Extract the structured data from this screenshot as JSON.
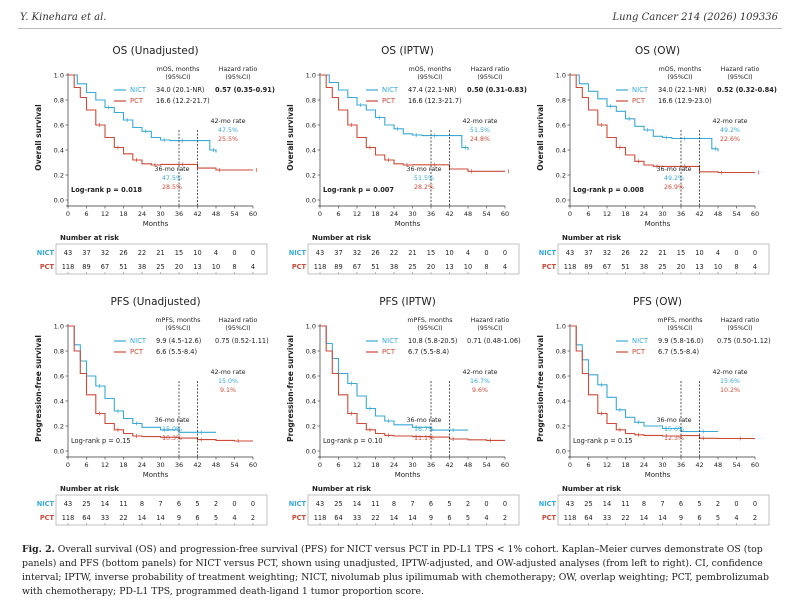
{
  "header": {
    "left": "Y. Kinehara et al.",
    "right": "Lung Cancer 214 (2026) 109336"
  },
  "colors": {
    "nict": "#3aa9d6",
    "pct": "#cc4b3a",
    "table_border": "#999999"
  },
  "common": {
    "x_ticks": [
      "0",
      "6",
      "12",
      "18",
      "24",
      "30",
      "36",
      "42",
      "48",
      "54",
      "60"
    ],
    "xlabel": "Months",
    "y_ticks": [
      "0.0",
      "0.2",
      "0.4",
      "0.6",
      "0.8",
      "1.0"
    ],
    "risk_title": "Number at risk",
    "nict_label": "NICT",
    "pct_label": "PCT",
    "rate36_label": "36-mo rate",
    "rate42_label": "42-mo rate"
  },
  "panels": [
    {
      "title": "OS (Unadjusted)",
      "ylabel": "Overall survival",
      "stat_head": "mOS, months\n(95%CI)",
      "hr_head": "Hazard ratio\n(95%CI)",
      "nict_median": "34.0 (20.1-NR)",
      "pct_median": "16.6 (12.2-21.7)",
      "hr": "0.57 (0.35-0.91)",
      "hr_bold": true,
      "rate42": [
        "47.5%",
        "25.5%"
      ],
      "rate36": [
        "47.5%",
        "28.5%"
      ],
      "logrank": "Log-rank p = 0.018",
      "logrank_bold": true,
      "risk_nict": [
        "43",
        "37",
        "32",
        "26",
        "22",
        "21",
        "15",
        "10",
        "4",
        "0",
        "0"
      ],
      "risk_pct": [
        "118",
        "89",
        "67",
        "51",
        "38",
        "25",
        "20",
        "13",
        "10",
        "8",
        "4"
      ]
    },
    {
      "title": "OS (IPTW)",
      "ylabel": "Overall survival",
      "stat_head": "mOS, months\n(95%CI)",
      "hr_head": "Hazard ratio\n(95%CI)",
      "nict_median": "47.4 (22.1-NR)",
      "pct_median": "16.6 (12.3-21.7)",
      "hr": "0.50 (0.31-0.83)",
      "hr_bold": true,
      "rate42": [
        "51.5%",
        "24.8%"
      ],
      "rate36": [
        "51.5%",
        "28.2%"
      ],
      "logrank": "Log-rank p = 0.007",
      "logrank_bold": true,
      "risk_nict": [
        "43",
        "37",
        "32",
        "26",
        "22",
        "21",
        "15",
        "10",
        "4",
        "0",
        "0"
      ],
      "risk_pct": [
        "118",
        "89",
        "67",
        "51",
        "38",
        "25",
        "20",
        "13",
        "10",
        "8",
        "4"
      ]
    },
    {
      "title": "OS (OW)",
      "ylabel": "Overall survival",
      "stat_head": "mOS, months\n(95%CI)",
      "hr_head": "Hazard ratio\n(95%CI)",
      "nict_median": "34.0 (22.1-NR)",
      "pct_median": "16.6 (12.9-23.0)",
      "hr": "0.52 (0.32-0.84)",
      "hr_bold": true,
      "rate42": [
        "49.2%",
        "22.6%"
      ],
      "rate36": [
        "49.2%",
        "26.9%"
      ],
      "logrank": "Log-rank p = 0.008",
      "logrank_bold": true,
      "risk_nict": [
        "43",
        "37",
        "32",
        "26",
        "22",
        "21",
        "15",
        "10",
        "4",
        "0",
        "0"
      ],
      "risk_pct": [
        "118",
        "89",
        "67",
        "51",
        "38",
        "25",
        "20",
        "13",
        "10",
        "8",
        "4"
      ]
    },
    {
      "title": "PFS (Unadjusted)",
      "ylabel": "Progression-free survival",
      "stat_head": "mPFS, months\n(95%CI)",
      "hr_head": "Hazard ratio\n(95%CI)",
      "nict_median": "9.9 (4.5-12.6)",
      "pct_median": "6.6 (5.5-8.4)",
      "hr": "0.75 (0.52-1.11)",
      "hr_bold": false,
      "rate42": [
        "15.0%",
        "9.1%"
      ],
      "rate36": [
        "15.0%",
        "10.3%"
      ],
      "logrank": "Log-rank p = 0.15",
      "logrank_bold": false,
      "risk_nict": [
        "43",
        "25",
        "14",
        "11",
        "8",
        "7",
        "6",
        "5",
        "2",
        "0",
        "0"
      ],
      "risk_pct": [
        "118",
        "64",
        "33",
        "22",
        "14",
        "14",
        "9",
        "6",
        "5",
        "4",
        "2"
      ]
    },
    {
      "title": "PFS (IPTW)",
      "ylabel": "Progression-free survival",
      "stat_head": "mPFS, months\n(95%CI)",
      "hr_head": "Hazard ratio\n(95%CI)",
      "nict_median": "10.8 (5.8-20.5)",
      "pct_median": "6.7 (5.5-8.4)",
      "hr": "0.71 (0.48-1.06)",
      "hr_bold": false,
      "rate42": [
        "16.7%",
        "9.6%"
      ],
      "rate36": [
        "16.7%",
        "11.1%"
      ],
      "logrank": "Log-rank p = 0.10",
      "logrank_bold": false,
      "risk_nict": [
        "43",
        "25",
        "14",
        "11",
        "8",
        "7",
        "6",
        "5",
        "2",
        "0",
        "0"
      ],
      "risk_pct": [
        "118",
        "64",
        "33",
        "22",
        "14",
        "14",
        "9",
        "6",
        "5",
        "4",
        "2"
      ]
    },
    {
      "title": "PFS (OW)",
      "ylabel": "Progression-free survival",
      "stat_head": "mPFS, months\n(95%CI)",
      "hr_head": "Hazard ratio\n(95%CI)",
      "nict_median": "9.9 (5.8-16.0)",
      "pct_median": "6.7 (5.5-8.4)",
      "hr": "0.75 (0.50-1.12)",
      "hr_bold": false,
      "rate42": [
        "15.6%",
        "10.2%"
      ],
      "rate36": [
        "15.6%",
        "12.3%"
      ],
      "logrank": "Log-rank p = 0.15",
      "logrank_bold": false,
      "risk_nict": [
        "43",
        "25",
        "14",
        "11",
        "8",
        "7",
        "6",
        "5",
        "2",
        "0",
        "0"
      ],
      "risk_pct": [
        "118",
        "64",
        "33",
        "22",
        "14",
        "14",
        "9",
        "6",
        "5",
        "4",
        "2"
      ]
    }
  ],
  "caption": {
    "label": "Fig. 2.",
    "text": "Overall survival (OS) and progression-free survival (PFS) for NICT versus PCT in PD-L1 TPS < 1% cohort. Kaplan–Meier curves demonstrate OS (top panels) and PFS (bottom panels) for NICT versus PCT, shown using unadjusted, IPTW-adjusted, and OW-adjusted analyses (from left to right). CI, confidence interval; IPTW, inverse probability of treatment weighting; NICT, nivolumab plus ipilimumab with chemotherapy; OW, overlap weighting; PCT, pembrolizumab with chemotherapy; PD-L1 TPS, programmed death-ligand 1 tumor proportion score."
  },
  "chart_data": [
    {
      "type": "line",
      "title": "OS (Unadjusted)",
      "xlabel": "Months",
      "ylabel": "Overall survival",
      "xlim": [
        0,
        60
      ],
      "ylim": [
        0,
        1
      ],
      "series": [
        {
          "name": "NICT",
          "x": [
            0,
            3,
            6,
            9,
            12,
            15,
            18,
            21,
            24,
            27,
            30,
            33,
            36,
            42,
            46,
            48
          ],
          "y": [
            1,
            0.93,
            0.86,
            0.8,
            0.74,
            0.7,
            0.64,
            0.58,
            0.55,
            0.5,
            0.48,
            0.475,
            0.475,
            0.475,
            0.4,
            0.38
          ]
        },
        {
          "name": "PCT",
          "x": [
            0,
            2,
            4,
            6,
            9,
            12,
            15,
            18,
            21,
            24,
            27,
            30,
            36,
            42,
            48,
            54,
            60
          ],
          "y": [
            1,
            0.9,
            0.82,
            0.72,
            0.6,
            0.5,
            0.42,
            0.37,
            0.32,
            0.29,
            0.28,
            0.285,
            0.285,
            0.255,
            0.24,
            0.24,
            0.24
          ]
        }
      ]
    },
    {
      "type": "line",
      "title": "OS (IPTW)",
      "xlabel": "Months",
      "ylabel": "Overall survival",
      "xlim": [
        0,
        60
      ],
      "ylim": [
        0,
        1
      ],
      "series": [
        {
          "name": "NICT",
          "x": [
            0,
            3,
            6,
            9,
            12,
            15,
            18,
            21,
            24,
            27,
            30,
            33,
            36,
            42,
            46,
            48
          ],
          "y": [
            1,
            0.94,
            0.88,
            0.82,
            0.76,
            0.72,
            0.66,
            0.6,
            0.57,
            0.53,
            0.52,
            0.515,
            0.515,
            0.515,
            0.42,
            0.4
          ]
        },
        {
          "name": "PCT",
          "x": [
            0,
            2,
            4,
            6,
            9,
            12,
            15,
            18,
            21,
            24,
            27,
            30,
            36,
            42,
            48,
            54,
            60
          ],
          "y": [
            1,
            0.9,
            0.82,
            0.72,
            0.6,
            0.5,
            0.42,
            0.36,
            0.32,
            0.29,
            0.28,
            0.282,
            0.282,
            0.248,
            0.23,
            0.23,
            0.23
          ]
        }
      ]
    },
    {
      "type": "line",
      "title": "OS (OW)",
      "xlabel": "Months",
      "ylabel": "Overall survival",
      "xlim": [
        0,
        60
      ],
      "ylim": [
        0,
        1
      ],
      "series": [
        {
          "name": "NICT",
          "x": [
            0,
            3,
            6,
            9,
            12,
            15,
            18,
            21,
            24,
            27,
            30,
            33,
            36,
            42,
            46,
            48
          ],
          "y": [
            1,
            0.93,
            0.87,
            0.81,
            0.75,
            0.71,
            0.65,
            0.59,
            0.56,
            0.51,
            0.5,
            0.492,
            0.492,
            0.492,
            0.41,
            0.39
          ]
        },
        {
          "name": "PCT",
          "x": [
            0,
            2,
            4,
            6,
            9,
            12,
            15,
            18,
            21,
            24,
            27,
            30,
            36,
            42,
            48,
            54,
            60
          ],
          "y": [
            1,
            0.9,
            0.82,
            0.72,
            0.6,
            0.5,
            0.42,
            0.36,
            0.31,
            0.28,
            0.27,
            0.269,
            0.269,
            0.226,
            0.22,
            0.22,
            0.22
          ]
        }
      ]
    },
    {
      "type": "line",
      "title": "PFS (Unadjusted)",
      "xlabel": "Months",
      "ylabel": "Progression-free survival",
      "xlim": [
        0,
        60
      ],
      "ylim": [
        0,
        1
      ],
      "series": [
        {
          "name": "NICT",
          "x": [
            0,
            2,
            4,
            6,
            9,
            12,
            15,
            18,
            21,
            24,
            30,
            36,
            42,
            48
          ],
          "y": [
            1,
            0.85,
            0.72,
            0.6,
            0.52,
            0.42,
            0.32,
            0.26,
            0.22,
            0.19,
            0.17,
            0.15,
            0.15,
            0.15
          ]
        },
        {
          "name": "PCT",
          "x": [
            0,
            2,
            4,
            6,
            9,
            12,
            15,
            18,
            21,
            24,
            30,
            36,
            42,
            48,
            54,
            60
          ],
          "y": [
            1,
            0.8,
            0.62,
            0.45,
            0.3,
            0.22,
            0.17,
            0.14,
            0.12,
            0.115,
            0.11,
            0.103,
            0.091,
            0.085,
            0.08,
            0.08
          ]
        }
      ]
    },
    {
      "type": "line",
      "title": "PFS (IPTW)",
      "xlabel": "Months",
      "ylabel": "Progression-free survival",
      "xlim": [
        0,
        60
      ],
      "ylim": [
        0,
        1
      ],
      "series": [
        {
          "name": "NICT",
          "x": [
            0,
            2,
            4,
            6,
            9,
            12,
            15,
            18,
            21,
            24,
            30,
            36,
            42,
            48
          ],
          "y": [
            1,
            0.86,
            0.74,
            0.62,
            0.54,
            0.44,
            0.34,
            0.28,
            0.24,
            0.21,
            0.19,
            0.167,
            0.167,
            0.167
          ]
        },
        {
          "name": "PCT",
          "x": [
            0,
            2,
            4,
            6,
            9,
            12,
            15,
            18,
            21,
            24,
            30,
            36,
            42,
            48,
            54,
            60
          ],
          "y": [
            1,
            0.8,
            0.62,
            0.45,
            0.3,
            0.22,
            0.17,
            0.14,
            0.125,
            0.12,
            0.115,
            0.111,
            0.096,
            0.09,
            0.085,
            0.085
          ]
        }
      ]
    },
    {
      "type": "line",
      "title": "PFS (OW)",
      "xlabel": "Months",
      "ylabel": "Progression-free survival",
      "xlim": [
        0,
        60
      ],
      "ylim": [
        0,
        1
      ],
      "series": [
        {
          "name": "NICT",
          "x": [
            0,
            2,
            4,
            6,
            9,
            12,
            15,
            18,
            21,
            24,
            30,
            36,
            42,
            48
          ],
          "y": [
            1,
            0.85,
            0.73,
            0.61,
            0.53,
            0.43,
            0.33,
            0.27,
            0.23,
            0.2,
            0.18,
            0.156,
            0.156,
            0.156
          ]
        },
        {
          "name": "PCT",
          "x": [
            0,
            2,
            4,
            6,
            9,
            12,
            15,
            18,
            21,
            24,
            30,
            36,
            42,
            48,
            54,
            60
          ],
          "y": [
            1,
            0.8,
            0.62,
            0.45,
            0.3,
            0.22,
            0.17,
            0.14,
            0.13,
            0.125,
            0.12,
            0.123,
            0.102,
            0.1,
            0.1,
            0.1
          ]
        }
      ]
    }
  ]
}
